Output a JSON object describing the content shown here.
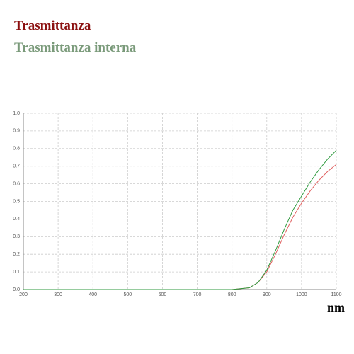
{
  "chart_data": {
    "type": "line",
    "x_label": "nm",
    "x": [
      200,
      800,
      850,
      875,
      900,
      925,
      950,
      975,
      1000,
      1025,
      1050,
      1075,
      1100
    ],
    "series": [
      {
        "name": "Trasmittanza",
        "color": "#8b1010",
        "line_color": "#e06060",
        "values": [
          0,
          0,
          0.01,
          0.04,
          0.1,
          0.2,
          0.31,
          0.41,
          0.49,
          0.56,
          0.62,
          0.67,
          0.71
        ]
      },
      {
        "name": "Trasmittanza interna",
        "color": "#7a9a7a",
        "line_color": "#2e9a3e",
        "values": [
          0,
          0,
          0.01,
          0.04,
          0.11,
          0.22,
          0.34,
          0.45,
          0.53,
          0.61,
          0.68,
          0.74,
          0.79
        ]
      }
    ],
    "xlim": [
      200,
      1100
    ],
    "xticks": [
      200,
      300,
      400,
      500,
      600,
      700,
      800,
      900,
      1000,
      1100
    ],
    "ylim": [
      0,
      1
    ],
    "yticks": [
      {
        "value": 0,
        "label": "0.0"
      },
      0.1,
      0.2,
      0.3,
      0.4,
      0.5,
      0.6,
      0.7,
      0.8,
      0.9,
      {
        "value": 1,
        "label": "1.0"
      }
    ],
    "grid": true
  }
}
